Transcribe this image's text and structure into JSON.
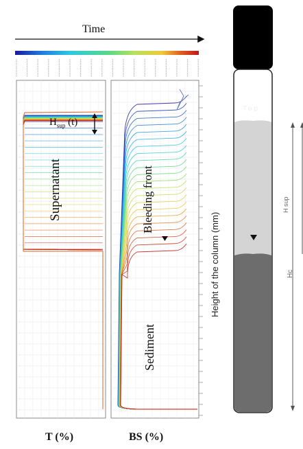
{
  "top": {
    "time_label": "Time"
  },
  "plots": {
    "left_label": "Supernatant",
    "h_sup_main": "H",
    "h_sup_sub": "sup",
    "h_sup_t": "(t)",
    "mid_label": "Bleeding front",
    "bottom_label": "Sediment",
    "x_left": "T (%)",
    "x_right": "BS (%)",
    "side_label": "Height of the column (mm)"
  },
  "column": {
    "top_label": "Top",
    "h_sup_label": "H sup",
    "hc_label": "Hc"
  },
  "colors": {
    "cap": "#000000",
    "supernatant": "#d4d4d4",
    "sediment": "#6d6d6d",
    "gradient": [
      "#1a1a9e",
      "#1f7fe0",
      "#2ec8e0",
      "#55d88a",
      "#b6e15a",
      "#f0c83a",
      "#e06020",
      "#c01818"
    ]
  }
}
